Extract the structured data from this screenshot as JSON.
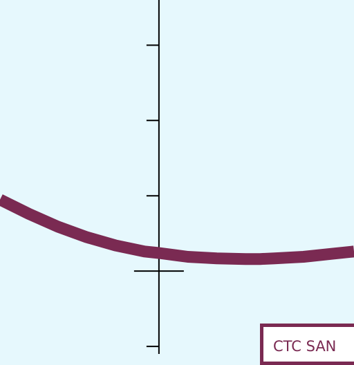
{
  "chart_data": {
    "type": "line",
    "x_axis": {
      "range": [
        -2.2,
        2.7
      ],
      "ticks": [
        0
      ]
    },
    "y_axis": {
      "range": [
        -1.1,
        3.6
      ],
      "ticks": [
        -1,
        0,
        1,
        2,
        3
      ]
    },
    "grid": false,
    "series": [
      {
        "color": "#7a2a52",
        "x": [
          -2.2,
          -1.8,
          -1.4,
          -1.0,
          -0.6,
          -0.2,
          0,
          0.4,
          0.8,
          1.2,
          1.4,
          1.6,
          2.0,
          2.4,
          2.7
        ],
        "y": [
          0.95,
          0.76,
          0.59,
          0.45,
          0.34,
          0.26,
          0.24,
          0.19,
          0.17,
          0.16,
          0.16,
          0.17,
          0.19,
          0.23,
          0.26
        ]
      }
    ]
  },
  "colors": {
    "background": "#e6f8fd",
    "curve": "#7a2a52",
    "axis": "#000000"
  },
  "watermark": {
    "text": "CTC SAN"
  }
}
